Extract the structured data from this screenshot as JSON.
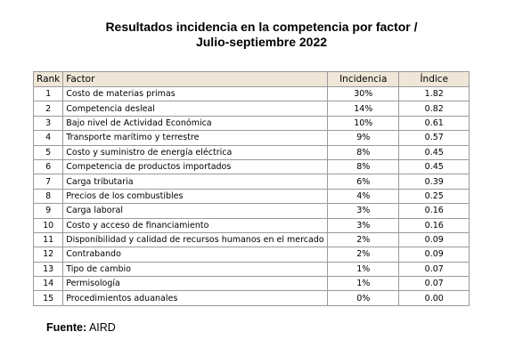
{
  "title": [
    "Resultados incidencia en la competencia por factor /",
    "Julio-septiembre 2022"
  ],
  "table": {
    "header": [
      "Rank",
      "Factor",
      "Incidencia",
      "Índice"
    ],
    "rows": [
      [
        "1",
        "Costo de materias primas",
        "30%",
        "1.82"
      ],
      [
        "2",
        "Competencia desleal",
        "14%",
        "0.82"
      ],
      [
        "3",
        "Bajo nivel de Actividad Económica",
        "10%",
        "0.61"
      ],
      [
        "4",
        "Transporte marítimo y terrestre",
        "9%",
        "0.57"
      ],
      [
        "5",
        "Costo y suministro de energía eléctrica",
        "8%",
        "0.45"
      ],
      [
        "6",
        "Competencia de productos importados",
        "8%",
        "0.45"
      ],
      [
        "7",
        "Carga tributaria",
        "6%",
        "0.39"
      ],
      [
        "8",
        "Precios de los combustibles",
        "4%",
        "0.25"
      ],
      [
        "9",
        "Carga laboral",
        "3%",
        "0.16"
      ],
      [
        "10",
        "Costo y acceso de financiamiento",
        "3%",
        "0.16"
      ],
      [
        "11",
        "Disponibilidad y calidad de recursos humanos en el mercado",
        "2%",
        "0.09"
      ],
      [
        "12",
        "Contrabando",
        "2%",
        "0.09"
      ],
      [
        "13",
        "Tipo de cambio",
        "1%",
        "0.07"
      ],
      [
        "14",
        "Permisología",
        "1%",
        "0.07"
      ],
      [
        "15",
        "Procedimientos aduanales",
        "0%",
        "0.00"
      ]
    ]
  },
  "source": {
    "label": "Fuente:",
    "text": "AIRD"
  }
}
